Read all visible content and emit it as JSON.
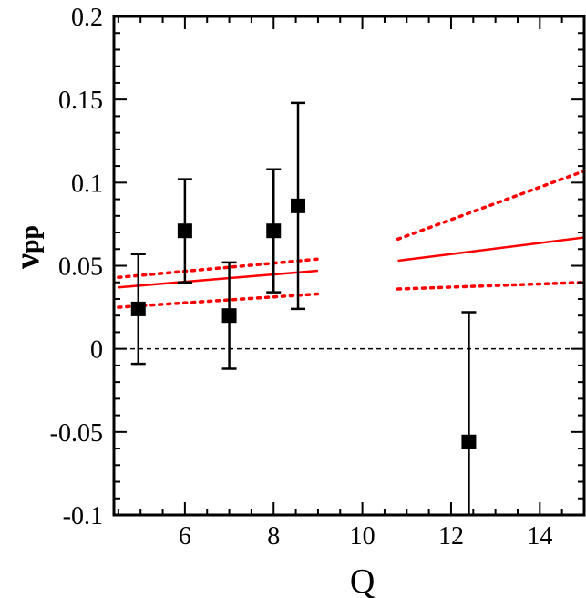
{
  "chart_data": {
    "type": "scatter",
    "xlabel": "Q",
    "ylabel_main": "ν",
    "ylabel_sub": "pp",
    "xlim": [
      4.4,
      15.0
    ],
    "ylim": [
      -0.1,
      0.2
    ],
    "x_major_ticks": [
      6,
      8,
      10,
      12,
      14
    ],
    "x_minor_step": 0.5,
    "y_major_ticks": [
      -0.1,
      -0.05,
      0,
      0.05,
      0.1,
      0.15,
      0.2
    ],
    "y_tick_labels": [
      "-0.1",
      "-0.05",
      "0",
      "0.05",
      "0.1",
      "0.15",
      "0.2"
    ],
    "y_minor_step": 0.01,
    "zero_line": {
      "y": 0,
      "style": "dashed",
      "color": "#000000"
    },
    "points": [
      {
        "x": 4.95,
        "y": 0.024,
        "err_low": -0.009,
        "err_high": 0.057
      },
      {
        "x": 6.0,
        "y": 0.071,
        "err_low": 0.04,
        "err_high": 0.102
      },
      {
        "x": 7.0,
        "y": 0.02,
        "err_low": -0.012,
        "err_high": 0.052
      },
      {
        "x": 8.0,
        "y": 0.071,
        "err_low": 0.034,
        "err_high": 0.108
      },
      {
        "x": 8.55,
        "y": 0.086,
        "err_low": 0.024,
        "err_high": 0.148
      },
      {
        "x": 12.4,
        "y": -0.056,
        "err_low": -0.1,
        "err_high": 0.022
      }
    ],
    "fit_segments": [
      {
        "x_range": [
          4.5,
          9.0
        ],
        "central": [
          0.037,
          0.047
        ],
        "upper": [
          0.043,
          0.054
        ],
        "lower": [
          0.025,
          0.033
        ]
      },
      {
        "x_range": [
          10.8,
          15.0
        ],
        "central": [
          0.053,
          0.067
        ],
        "upper": [
          0.066,
          0.107
        ],
        "lower": [
          0.036,
          0.04
        ]
      }
    ],
    "colors": {
      "points": "#000000",
      "fit": "#ff0000",
      "axes": "#000000"
    }
  }
}
